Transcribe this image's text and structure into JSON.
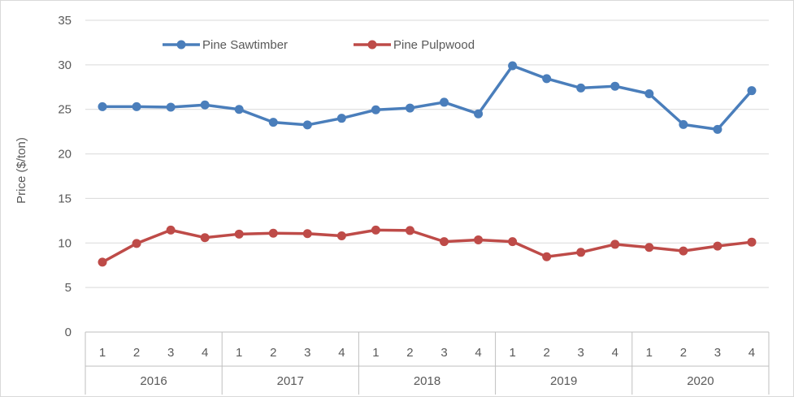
{
  "chart_data": {
    "type": "line",
    "title": "",
    "xlabel": "",
    "ylabel": "Price ($/ton)",
    "ylim": [
      0,
      35
    ],
    "yticks": [
      0,
      5,
      10,
      15,
      20,
      25,
      30,
      35
    ],
    "grid": "horizontal",
    "legend_position": "top-left",
    "categories": [
      "1",
      "2",
      "3",
      "4",
      "1",
      "2",
      "3",
      "4",
      "1",
      "2",
      "3",
      "4",
      "1",
      "2",
      "3",
      "4",
      "1",
      "2",
      "3",
      "4"
    ],
    "groups": [
      "2016",
      "2017",
      "2018",
      "2019",
      "2020"
    ],
    "series": [
      {
        "name": "Pine Sawtimber",
        "color": "#4a7ebb",
        "values": [
          25.3,
          25.3,
          25.25,
          25.5,
          25.0,
          23.55,
          23.25,
          24.0,
          24.95,
          25.15,
          25.8,
          24.5,
          29.9,
          28.45,
          27.4,
          27.6,
          26.75,
          23.3,
          22.75,
          27.1
        ]
      },
      {
        "name": "Pine Pulpwood",
        "color": "#be4b48",
        "values": [
          7.85,
          9.95,
          11.45,
          10.6,
          11.0,
          11.1,
          11.05,
          10.8,
          11.45,
          11.4,
          10.15,
          10.35,
          10.15,
          8.45,
          8.95,
          9.85,
          9.5,
          9.1,
          9.65,
          10.1
        ]
      }
    ]
  }
}
